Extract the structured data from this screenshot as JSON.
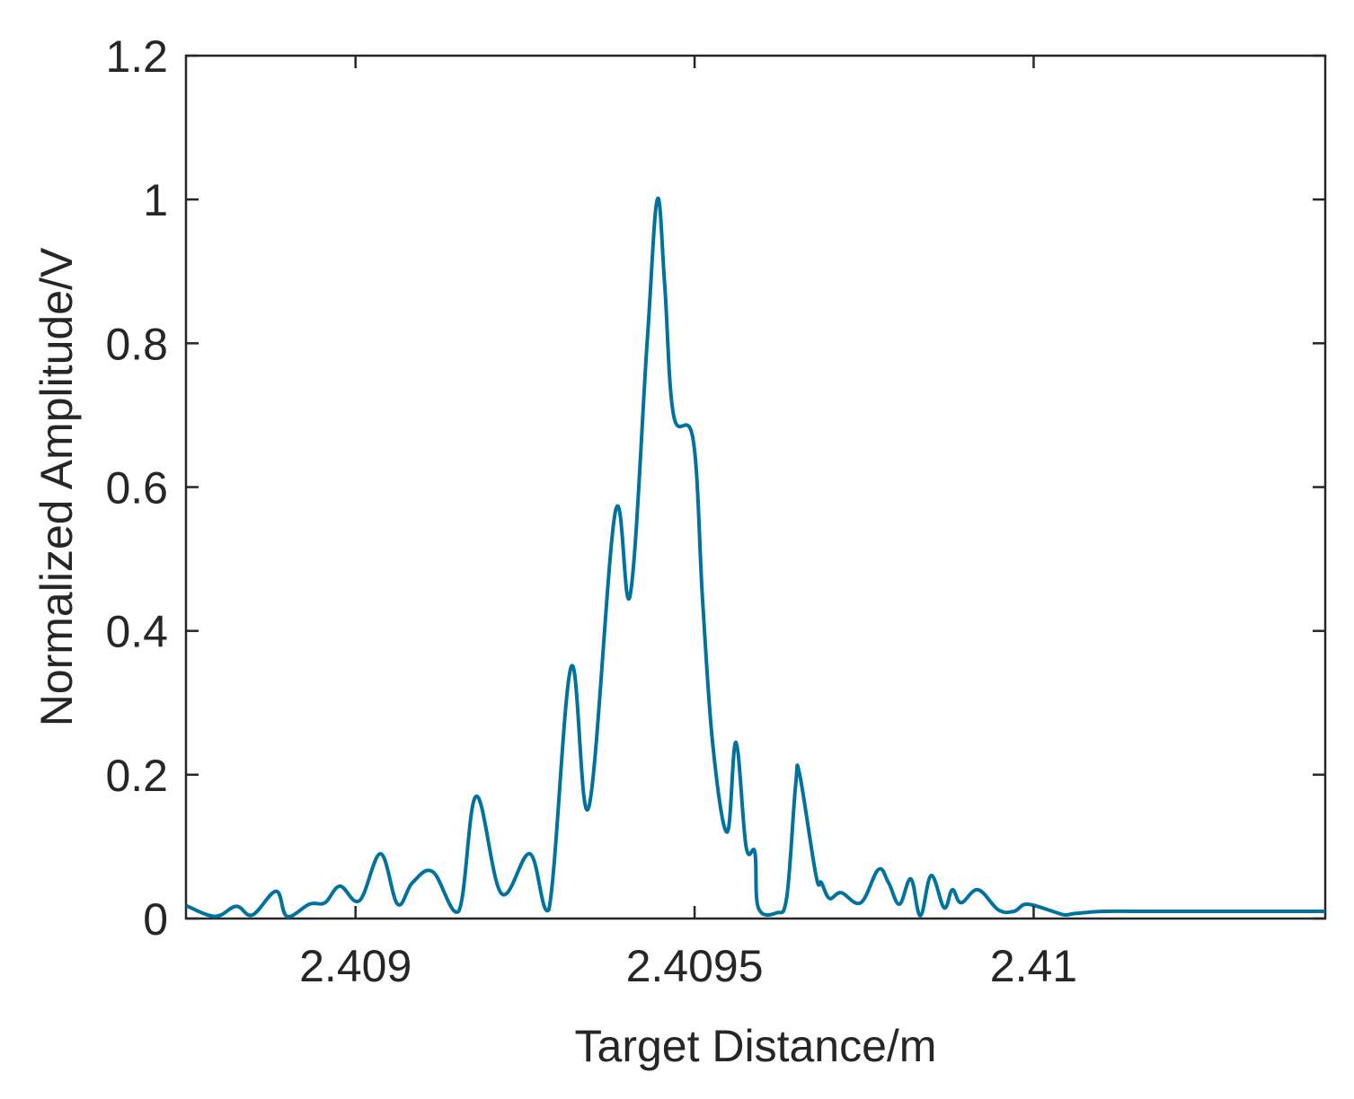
{
  "chart_data": {
    "type": "line",
    "xlabel": "Target Distance/m",
    "ylabel": "Normalized Amplitude/V",
    "xlim": [
      2.40875,
      2.41043
    ],
    "ylim": [
      0,
      1.2
    ],
    "xticks": [
      2.409,
      2.4095,
      2.41
    ],
    "xtick_labels": [
      "2.409",
      "2.4095",
      "2.41"
    ],
    "yticks": [
      0,
      0.2,
      0.4,
      0.6,
      0.8,
      1.0,
      1.2
    ],
    "ytick_labels": [
      "0",
      "0.2",
      "0.4",
      "0.6",
      "0.8",
      "1",
      "1.2"
    ],
    "grid": false,
    "line_color": "#0072a0",
    "series": [
      {
        "x": [
          2.40875,
          2.408793,
          2.408824,
          2.408848,
          2.408883,
          2.408899,
          2.408932,
          2.408955,
          2.408977,
          2.409006,
          2.409037,
          2.409062,
          2.409084,
          2.409114,
          2.409152,
          2.409178,
          2.409215,
          2.409257,
          2.409285,
          2.409318,
          2.409344,
          2.409383,
          2.409405,
          2.40943,
          2.409445,
          2.409456,
          2.409469,
          2.409498,
          2.409512,
          2.409527,
          2.409548,
          2.409561,
          2.409576,
          2.409589,
          2.409594,
          2.409621,
          2.409636,
          2.409649,
          2.409655,
          2.409679,
          2.409687,
          2.409699,
          2.409716,
          2.409745,
          2.409771,
          2.409786,
          2.409802,
          2.409819,
          2.409833,
          2.409849,
          2.409868,
          2.40988,
          2.409893,
          2.409918,
          2.409948,
          2.409971,
          2.40999,
          2.410028,
          2.410046,
          2.410061,
          2.410103,
          2.410149,
          2.41018,
          2.410214,
          2.41025,
          2.410276,
          2.410287,
          2.410314,
          2.410344,
          2.41037,
          2.410383,
          2.410404,
          2.410427,
          2.41043
        ],
        "y": [
          0.018,
          0.003,
          0.017,
          0.005,
          0.038,
          0.003,
          0.02,
          0.022,
          0.045,
          0.025,
          0.09,
          0.02,
          0.05,
          0.065,
          0.01,
          0.17,
          0.035,
          0.09,
          0.012,
          0.35,
          0.155,
          0.565,
          0.45,
          0.8,
          1.0,
          0.88,
          0.7,
          0.665,
          0.44,
          0.24,
          0.12,
          0.245,
          0.1,
          0.092,
          0.015,
          0.008,
          0.03,
          0.185,
          0.2,
          0.06,
          0.05,
          0.028,
          0.036,
          0.022,
          0.068,
          0.05,
          0.02,
          0.055,
          0.004,
          0.06,
          0.015,
          0.04,
          0.022,
          0.04,
          0.012,
          0.01,
          0.02,
          0.01,
          0.005,
          0.007,
          0.01,
          0.01,
          0.01,
          0.01,
          0.01,
          0.01,
          0.01,
          0.01,
          0.01,
          0.01,
          0.01,
          0.01,
          0.01,
          0.01
        ]
      }
    ]
  }
}
